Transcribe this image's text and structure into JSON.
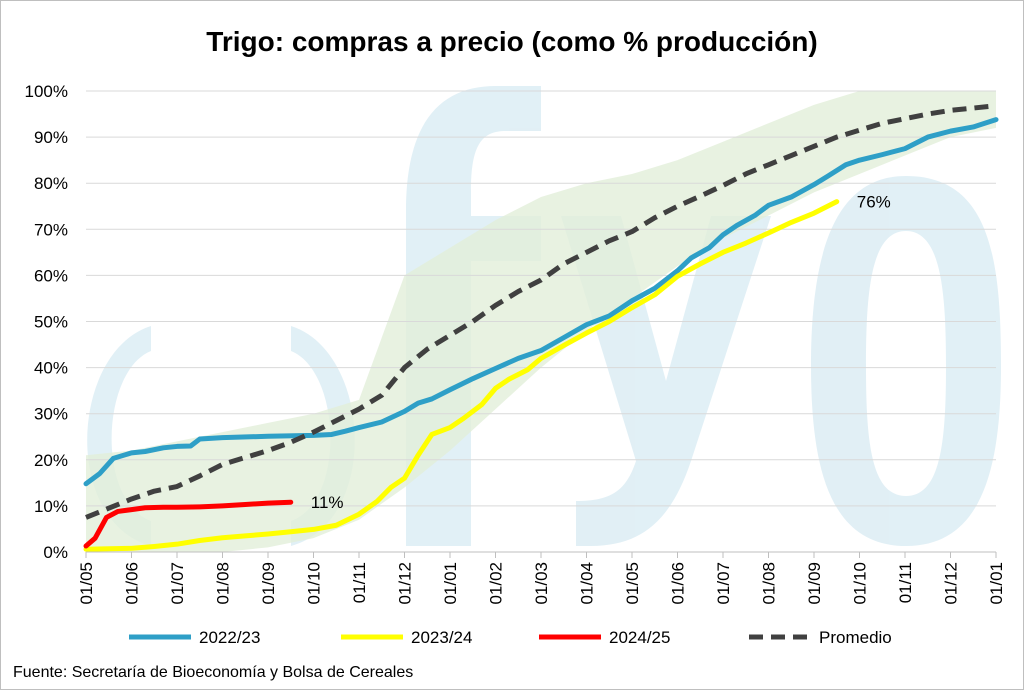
{
  "chart_data": {
    "type": "line",
    "title": "Trigo: compras a precio (como % producción)",
    "xlabel": "",
    "ylabel": "",
    "y_ticks": [
      "0%",
      "10%",
      "20%",
      "30%",
      "40%",
      "50%",
      "60%",
      "70%",
      "80%",
      "90%",
      "100%"
    ],
    "ylim": [
      0,
      100
    ],
    "x_ticks": [
      "01/05",
      "01/06",
      "01/07",
      "01/08",
      "01/09",
      "01/10",
      "01/11",
      "01/12",
      "01/01",
      "01/02",
      "01/03",
      "01/04",
      "01/05",
      "01/06",
      "01/07",
      "01/08",
      "01/09",
      "01/10",
      "01/11",
      "01/12",
      "01/01"
    ],
    "grid": "horizontal",
    "legend_position": "bottom",
    "band": {
      "color": "#e2efd9",
      "upper": [
        [
          0,
          21
        ],
        [
          1,
          22
        ],
        [
          2,
          24
        ],
        [
          3,
          26
        ],
        [
          4,
          28
        ],
        [
          5,
          30
        ],
        [
          6,
          33
        ],
        [
          7,
          60
        ],
        [
          8,
          66
        ],
        [
          9,
          72
        ],
        [
          10,
          77
        ],
        [
          11,
          80
        ],
        [
          12,
          82
        ],
        [
          13,
          85
        ],
        [
          14,
          89
        ],
        [
          15,
          93
        ],
        [
          16,
          97
        ],
        [
          17,
          100
        ],
        [
          18,
          100
        ],
        [
          19,
          100
        ],
        [
          20,
          100
        ]
      ],
      "lower": [
        [
          0,
          0
        ],
        [
          1,
          0
        ],
        [
          2,
          0
        ],
        [
          3,
          0
        ],
        [
          4,
          1
        ],
        [
          5,
          3
        ],
        [
          6,
          7
        ],
        [
          7,
          14
        ],
        [
          8,
          22
        ],
        [
          9,
          31
        ],
        [
          10,
          40
        ],
        [
          11,
          48
        ],
        [
          12,
          55
        ],
        [
          13,
          62
        ],
        [
          14,
          68
        ],
        [
          15,
          73
        ],
        [
          16,
          78
        ],
        [
          17,
          82
        ],
        [
          18,
          86
        ],
        [
          19,
          90
        ],
        [
          20,
          92
        ]
      ]
    },
    "series": [
      {
        "name": "2022/23",
        "color": "#2e9fc7",
        "style": "solid",
        "points": [
          [
            0,
            14.8
          ],
          [
            0.3,
            17
          ],
          [
            0.6,
            20.3
          ],
          [
            1.0,
            21.5
          ],
          [
            1.3,
            21.8
          ],
          [
            1.7,
            22.6
          ],
          [
            2.0,
            22.9
          ],
          [
            2.3,
            23
          ],
          [
            2.5,
            24.5
          ],
          [
            3.0,
            24.8
          ],
          [
            4.0,
            25.1
          ],
          [
            5.0,
            25.3
          ],
          [
            5.4,
            25.5
          ],
          [
            5.7,
            26.2
          ],
          [
            6.0,
            27
          ],
          [
            6.5,
            28.2
          ],
          [
            7.0,
            30.5
          ],
          [
            7.3,
            32.3
          ],
          [
            7.6,
            33.2
          ],
          [
            8.0,
            35.2
          ],
          [
            8.5,
            37.6
          ],
          [
            9.0,
            39.8
          ],
          [
            9.5,
            42
          ],
          [
            10.0,
            43.7
          ],
          [
            10.5,
            46.5
          ],
          [
            11.0,
            49.3
          ],
          [
            11.5,
            51.2
          ],
          [
            12.0,
            54.5
          ],
          [
            12.5,
            57.2
          ],
          [
            13.0,
            61
          ],
          [
            13.3,
            63.8
          ],
          [
            13.7,
            66
          ],
          [
            14.0,
            68.8
          ],
          [
            14.3,
            70.8
          ],
          [
            14.7,
            73
          ],
          [
            15.0,
            75.2
          ],
          [
            15.5,
            77
          ],
          [
            16.0,
            79.7
          ],
          [
            16.3,
            81.5
          ],
          [
            16.7,
            84
          ],
          [
            17.0,
            85
          ],
          [
            17.5,
            86.2
          ],
          [
            18.0,
            87.5
          ],
          [
            18.5,
            90
          ],
          [
            19.0,
            91.3
          ],
          [
            19.5,
            92.2
          ],
          [
            20.0,
            93.8
          ]
        ]
      },
      {
        "name": "2023/24",
        "color": "#ffff00",
        "style": "solid",
        "points": [
          [
            0,
            0.6
          ],
          [
            0.5,
            0.7
          ],
          [
            1.0,
            0.8
          ],
          [
            1.5,
            1.2
          ],
          [
            2.0,
            1.7
          ],
          [
            2.5,
            2.5
          ],
          [
            3.0,
            3.1
          ],
          [
            3.5,
            3.5
          ],
          [
            4.0,
            3.9
          ],
          [
            4.5,
            4.4
          ],
          [
            5.0,
            4.9
          ],
          [
            5.5,
            5.8
          ],
          [
            6.0,
            8.2
          ],
          [
            6.4,
            11
          ],
          [
            6.7,
            14
          ],
          [
            7.0,
            16
          ],
          [
            7.3,
            21
          ],
          [
            7.6,
            25.5
          ],
          [
            8.0,
            27
          ],
          [
            8.3,
            29
          ],
          [
            8.7,
            32
          ],
          [
            9.0,
            35.5
          ],
          [
            9.3,
            37.5
          ],
          [
            9.7,
            39.5
          ],
          [
            10.0,
            42
          ],
          [
            10.5,
            44.8
          ],
          [
            11.0,
            47.5
          ],
          [
            11.5,
            50
          ],
          [
            12.0,
            53
          ],
          [
            12.5,
            55.8
          ],
          [
            13.0,
            59.8
          ],
          [
            13.5,
            62.5
          ],
          [
            14.0,
            65
          ],
          [
            14.5,
            67
          ],
          [
            15.0,
            69.2
          ],
          [
            15.5,
            71.5
          ],
          [
            16.0,
            73.5
          ],
          [
            16.5,
            76
          ]
        ]
      },
      {
        "name": "2024/25",
        "color": "#ff0000",
        "style": "solid",
        "points": [
          [
            0,
            1.3
          ],
          [
            0.2,
            3
          ],
          [
            0.45,
            7.5
          ],
          [
            0.7,
            8.8
          ],
          [
            1.0,
            9.2
          ],
          [
            1.3,
            9.6
          ],
          [
            1.7,
            9.7
          ],
          [
            2.0,
            9.7
          ],
          [
            2.5,
            9.8
          ],
          [
            3.0,
            10
          ],
          [
            3.5,
            10.3
          ],
          [
            4.0,
            10.6
          ],
          [
            4.5,
            10.8
          ]
        ]
      },
      {
        "name": "Promedio",
        "color": "#404040",
        "style": "dashed",
        "points": [
          [
            0,
            7.5
          ],
          [
            0.5,
            9.5
          ],
          [
            1.0,
            11.5
          ],
          [
            1.5,
            13.2
          ],
          [
            2.0,
            14.2
          ],
          [
            2.5,
            16.5
          ],
          [
            3.0,
            19
          ],
          [
            3.5,
            20.5
          ],
          [
            4.0,
            22
          ],
          [
            4.5,
            23.8
          ],
          [
            5.0,
            26
          ],
          [
            5.5,
            28.5
          ],
          [
            6.0,
            31
          ],
          [
            6.5,
            34
          ],
          [
            7.0,
            40
          ],
          [
            7.5,
            44
          ],
          [
            8.0,
            47
          ],
          [
            8.5,
            50
          ],
          [
            9.0,
            53.5
          ],
          [
            9.5,
            56.5
          ],
          [
            10.0,
            59
          ],
          [
            10.5,
            62.5
          ],
          [
            11.0,
            65
          ],
          [
            11.5,
            67.5
          ],
          [
            12.0,
            69.5
          ],
          [
            12.5,
            72.5
          ],
          [
            13.0,
            75
          ],
          [
            13.5,
            77.2
          ],
          [
            14.0,
            79.5
          ],
          [
            14.5,
            82
          ],
          [
            15.0,
            84
          ],
          [
            15.5,
            86
          ],
          [
            16.0,
            88
          ],
          [
            16.5,
            90
          ],
          [
            17.0,
            91.5
          ],
          [
            17.5,
            93
          ],
          [
            18.0,
            94
          ],
          [
            18.5,
            95
          ],
          [
            19.0,
            95.8
          ],
          [
            19.5,
            96.3
          ],
          [
            20.0,
            96.8
          ]
        ]
      }
    ],
    "annotations": [
      {
        "text": "76%",
        "x": 16.5,
        "y": 76
      },
      {
        "text": "11%",
        "x": 4.5,
        "y": 10.8
      }
    ],
    "source": "Fuente: Secretaría de Bioeconomía y Bolsa de Cereales"
  }
}
